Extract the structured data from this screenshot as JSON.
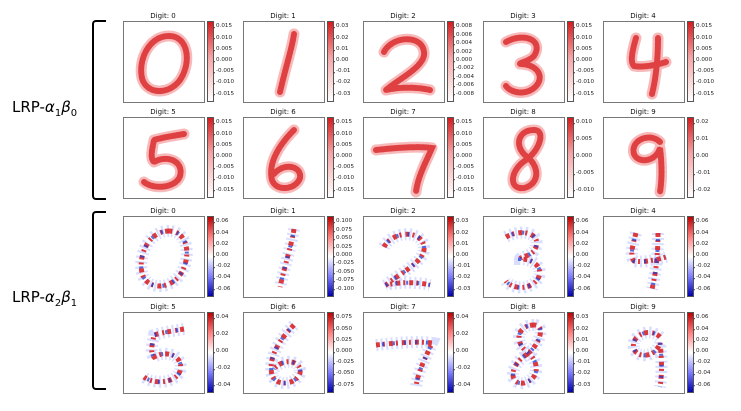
{
  "groups": [
    {
      "label_prefix": "LRP-",
      "alpha": "α",
      "alpha_sub": "1",
      "beta": "β",
      "beta_sub": "0",
      "colorbar": "positive",
      "panels": [
        {
          "title": "Digit: 0",
          "ticks": [
            "0.015",
            "0.010",
            "0.005",
            "0.000",
            "-0.005",
            "-0.010",
            "-0.015"
          ]
        },
        {
          "title": "Digit: 1",
          "ticks": [
            "0.03",
            "0.02",
            "0.01",
            "0.00",
            "-0.01",
            "-0.02",
            "-0.03"
          ]
        },
        {
          "title": "Digit: 2",
          "ticks": [
            "0.008",
            "0.006",
            "0.004",
            "0.002",
            "0.000",
            "-0.002",
            "-0.004",
            "-0.006",
            "-0.008"
          ]
        },
        {
          "title": "Digit: 3",
          "ticks": [
            "0.015",
            "0.010",
            "0.005",
            "0.000",
            "-0.005",
            "-0.010",
            "-0.015"
          ]
        },
        {
          "title": "Digit: 4",
          "ticks": [
            "0.015",
            "0.010",
            "0.005",
            "0.000",
            "-0.005",
            "-0.010",
            "-0.015"
          ]
        },
        {
          "title": "Digit: 5",
          "ticks": [
            "0.015",
            "0.010",
            "0.005",
            "0.000",
            "-0.005",
            "-0.010",
            "-0.015"
          ]
        },
        {
          "title": "Digit: 6",
          "ticks": [
            "0.015",
            "0.010",
            "0.005",
            "0.000",
            "-0.005",
            "-0.010",
            "-0.015"
          ]
        },
        {
          "title": "Digit: 7",
          "ticks": [
            "0.015",
            "0.010",
            "0.005",
            "0.000",
            "-0.005",
            "-0.010",
            "-0.015"
          ]
        },
        {
          "title": "Digit: 8",
          "ticks": [
            "0.010",
            "0.005",
            "0.000",
            "-0.005",
            "-0.010"
          ]
        },
        {
          "title": "Digit: 9",
          "ticks": [
            "0.02",
            "0.01",
            "0.00",
            "-0.01",
            "-0.02"
          ]
        }
      ]
    },
    {
      "label_prefix": "LRP-",
      "alpha": "α",
      "alpha_sub": "2",
      "beta": "β",
      "beta_sub": "1",
      "colorbar": "diverging",
      "panels": [
        {
          "title": "Digit: 0",
          "ticks": [
            "0.06",
            "0.04",
            "0.02",
            "0.00",
            "-0.02",
            "-0.04",
            "-0.06"
          ]
        },
        {
          "title": "Digit: 1",
          "ticks": [
            "0.100",
            "0.075",
            "0.050",
            "0.025",
            "0.000",
            "-0.025",
            "-0.050",
            "-0.075",
            "-0.100"
          ]
        },
        {
          "title": "Digit: 2",
          "ticks": [
            "0.03",
            "0.02",
            "0.01",
            "0.00",
            "-0.01",
            "-0.02",
            "-0.03"
          ]
        },
        {
          "title": "Digit: 3",
          "ticks": [
            "0.06",
            "0.04",
            "0.02",
            "0.00",
            "-0.02",
            "-0.04",
            "-0.06"
          ]
        },
        {
          "title": "Digit: 4",
          "ticks": [
            "0.06",
            "0.04",
            "0.02",
            "0.00",
            "-0.02",
            "-0.04",
            "-0.06"
          ]
        },
        {
          "title": "Digit: 5",
          "ticks": [
            "0.04",
            "0.02",
            "0.00",
            "-0.02",
            "-0.04"
          ]
        },
        {
          "title": "Digit: 6",
          "ticks": [
            "0.075",
            "0.050",
            "0.025",
            "0.000",
            "-0.025",
            "-0.050",
            "-0.075"
          ]
        },
        {
          "title": "Digit: 7",
          "ticks": [
            "0.04",
            "0.02",
            "0.00",
            "-0.02",
            "-0.04"
          ]
        },
        {
          "title": "Digit: 8",
          "ticks": [
            "0.03",
            "0.02",
            "0.01",
            "0.00",
            "-0.01",
            "-0.02",
            "-0.03"
          ]
        },
        {
          "title": "Digit: 9",
          "ticks": [
            "0.06",
            "0.04",
            "0.02",
            "0.00",
            "-0.02",
            "-0.04",
            "-0.06"
          ]
        }
      ]
    }
  ],
  "colors": {
    "positive": "#d7191c",
    "negative": "#1f3fd0"
  }
}
